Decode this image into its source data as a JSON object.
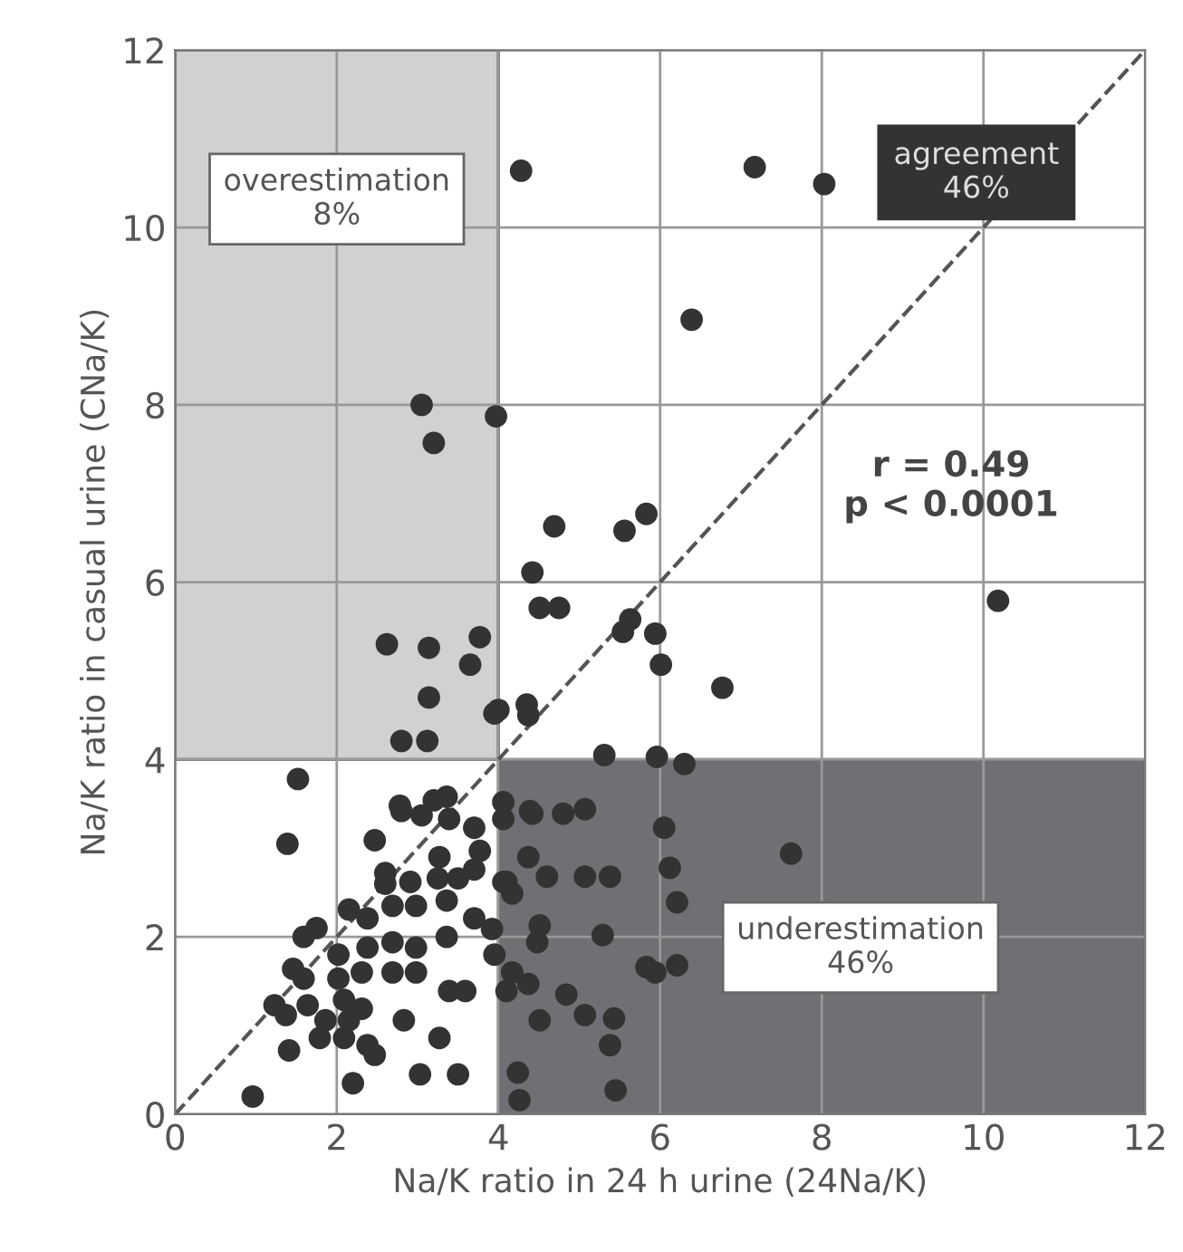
{
  "chart_data": {
    "type": "scatter",
    "xlabel": "Na/K ratio in 24 h urine (24Na/K)",
    "ylabel": "Na/K ratio in casual urine (CNa/K)",
    "xlim": [
      0,
      12
    ],
    "ylim": [
      0,
      12
    ],
    "xticks": [
      0,
      2,
      4,
      6,
      8,
      10,
      12
    ],
    "yticks": [
      0,
      2,
      4,
      6,
      8,
      10,
      12
    ],
    "grid": true,
    "marker": "circle",
    "series": [
      {
        "color": "#333333",
        "x": [
          4.28,
          7.17,
          8.03,
          6.39,
          3.05,
          3.2,
          3.97,
          10.18,
          4.69,
          4.42,
          4.51,
          4.75,
          5.56,
          5.83,
          5.63,
          5.54,
          5.94,
          6.01,
          6.77,
          2.62,
          3.77,
          3.65,
          3.14,
          3.14,
          3.12,
          2.8,
          4.0,
          4.35,
          4.37,
          5.96,
          6.3,
          7.62,
          1.52,
          1.39,
          0.96,
          5.31,
          6.05,
          6.12,
          6.21,
          5.07,
          4.8,
          4.42,
          4.06,
          5.07,
          5.38,
          4.6,
          4.37,
          5.29,
          4.51,
          4.48,
          5.83,
          5.94,
          6.21,
          4.84,
          5.07,
          5.43,
          5.38,
          5.45,
          4.24,
          4.26,
          4.51,
          4.37,
          4.1,
          4.17,
          4.1,
          4.17,
          3.95,
          2.47,
          2.78,
          2.8,
          3.36,
          3.2,
          3.05,
          3.39,
          3.7,
          4.06,
          4.39,
          3.77,
          3.27,
          2.6,
          2.6,
          2.91,
          3.25,
          3.5,
          3.7,
          4.06,
          2.15,
          2.38,
          2.69,
          2.98,
          3.36,
          3.7,
          3.92,
          1.59,
          1.75,
          2.02,
          2.38,
          2.69,
          2.98,
          3.36,
          1.46,
          1.59,
          2.02,
          2.31,
          2.69,
          2.98,
          3.39,
          3.59,
          3.95,
          1.23,
          1.37,
          1.64,
          1.86,
          2.09,
          2.31,
          2.15,
          1.79,
          2.09,
          2.38,
          2.47,
          1.41,
          2.83,
          3.27,
          2.2,
          3.03,
          3.5
        ],
        "values": [
          10.64,
          10.68,
          10.49,
          8.96,
          8.0,
          7.57,
          7.87,
          5.79,
          6.63,
          6.11,
          5.71,
          5.71,
          6.58,
          6.77,
          5.58,
          5.44,
          5.42,
          5.07,
          4.81,
          5.3,
          5.38,
          5.07,
          5.26,
          4.7,
          4.21,
          4.21,
          4.56,
          4.62,
          4.5,
          4.03,
          3.95,
          2.94,
          3.78,
          3.05,
          0.2,
          4.05,
          3.23,
          2.78,
          2.39,
          3.44,
          3.39,
          3.39,
          3.52,
          2.68,
          2.68,
          2.68,
          2.9,
          2.02,
          2.13,
          1.94,
          1.66,
          1.6,
          1.68,
          1.35,
          1.12,
          1.08,
          0.78,
          0.27,
          0.47,
          0.16,
          1.06,
          1.47,
          1.39,
          1.6,
          2.62,
          2.49,
          4.52,
          3.09,
          3.48,
          3.42,
          3.58,
          3.54,
          3.37,
          3.33,
          3.23,
          3.33,
          3.42,
          2.97,
          2.9,
          2.72,
          2.6,
          2.62,
          2.66,
          2.66,
          2.76,
          2.62,
          2.31,
          2.21,
          2.35,
          2.35,
          2.41,
          2.21,
          2.09,
          2.0,
          2.1,
          1.8,
          1.88,
          1.94,
          1.88,
          2.0,
          1.64,
          1.53,
          1.53,
          1.6,
          1.6,
          1.6,
          1.39,
          1.39,
          1.8,
          1.23,
          1.12,
          1.23,
          1.06,
          1.29,
          1.19,
          1.06,
          0.86,
          0.86,
          0.78,
          0.67,
          0.72,
          1.06,
          0.86,
          0.35,
          0.45,
          0.45
        ]
      },
      {
        "type": "line",
        "color": "#555555",
        "line_style": "dashed",
        "marker": "none",
        "x": [
          0,
          12
        ],
        "values": [
          0,
          12
        ]
      }
    ],
    "bands": [
      {
        "axis": "x",
        "from": 0,
        "to": 4,
        "label": "overestimation\n8%",
        "color": "#d0d1d3"
      },
      {
        "axis": "y",
        "from": 0,
        "to": 4,
        "label": "underestimation\n46%",
        "color": "#6f7073"
      }
    ],
    "annotations": [
      "agreement\n46%",
      "r = 0.49\np < 0.0001"
    ]
  }
}
